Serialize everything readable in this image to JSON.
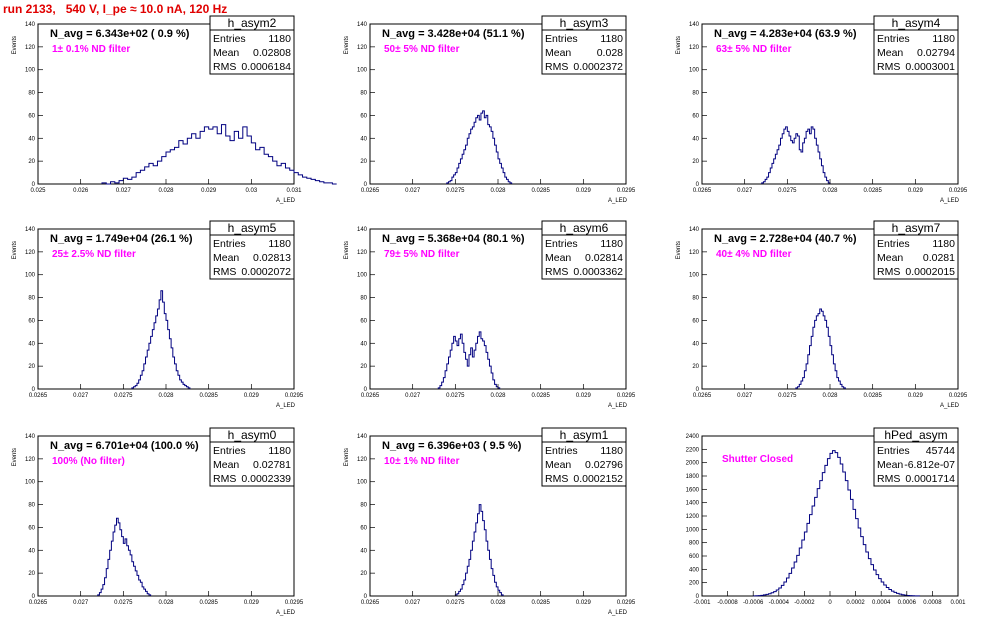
{
  "title": "run 2133,   540 V, I_pe ≈ 10.0 nA, 120 Hz",
  "chart_data": [
    {
      "type": "bar",
      "name": "h_asym2",
      "navg": "N_avg = 6.343e+02 ( 0.9 %)",
      "note": "1± 0.1% ND filter",
      "xlim": [
        0.025,
        0.031
      ],
      "ylim": [
        0,
        140
      ],
      "xticks": [
        "0.025",
        "0.026",
        "0.027",
        "0.028",
        "0.029",
        "0.03",
        "0.031"
      ],
      "xtick_values": [
        0.025,
        0.026,
        0.027,
        0.028,
        0.029,
        0.03,
        0.031
      ],
      "yticks": [
        "0",
        "20",
        "40",
        "60",
        "80",
        "100",
        "120",
        "140"
      ],
      "ytick_values": [
        0,
        20,
        40,
        60,
        80,
        100,
        120,
        140
      ],
      "xlabel": "A_LED",
      "ylabel": "Events",
      "stats": {
        "entries": "1180",
        "mean": "0.02808",
        "rms": "0.0006184"
      },
      "bins_x0": 0.0265,
      "bin_width": 0.0001,
      "values": [
        1,
        0,
        2,
        1,
        3,
        5,
        4,
        6,
        10,
        12,
        15,
        18,
        16,
        20,
        24,
        28,
        30,
        32,
        38,
        35,
        40,
        44,
        40,
        46,
        50,
        48,
        50,
        44,
        52,
        42,
        38,
        46,
        40,
        50,
        42,
        36,
        30,
        32,
        26,
        24,
        20,
        16,
        18,
        14,
        12,
        10,
        8,
        6,
        5,
        4,
        3,
        2,
        1,
        1,
        0
      ]
    },
    {
      "type": "bar",
      "name": "h_asym3",
      "navg": "N_avg = 3.428e+04 (51.1 %)",
      "note": "50± 5% ND filter",
      "xlim": [
        0.0265,
        0.0295
      ],
      "ylim": [
        0,
        140
      ],
      "xticks": [
        "0.0265",
        "0.027",
        "0.0275",
        "0.028",
        "0.0285",
        "0.029",
        "0.0295"
      ],
      "xtick_values": [
        0.0265,
        0.027,
        0.0275,
        0.028,
        0.0285,
        0.029,
        0.0295
      ],
      "yticks": [
        "0",
        "20",
        "40",
        "60",
        "80",
        "100",
        "120",
        "140"
      ],
      "ytick_values": [
        0,
        20,
        40,
        60,
        80,
        100,
        120,
        140
      ],
      "xlabel": "A_LED",
      "ylabel": "Events",
      "stats": {
        "entries": "1180",
        "mean": "0.028",
        "rms": "0.0002372"
      },
      "bins_x0": 0.0274,
      "bin_width": 2e-05,
      "values": [
        1,
        2,
        3,
        6,
        8,
        10,
        14,
        18,
        22,
        26,
        30,
        34,
        40,
        44,
        48,
        50,
        54,
        58,
        60,
        56,
        62,
        64,
        58,
        60,
        52,
        50,
        46,
        40,
        34,
        28,
        22,
        18,
        14,
        10,
        6,
        4,
        2,
        1
      ]
    },
    {
      "type": "bar",
      "name": "h_asym4",
      "navg": "N_avg = 4.283e+04 (63.9 %)",
      "note": "63± 5% ND filter",
      "xlim": [
        0.0265,
        0.0295
      ],
      "ylim": [
        0,
        140
      ],
      "xticks": [
        "0.0265",
        "0.027",
        "0.0275",
        "0.028",
        "0.0285",
        "0.029",
        "0.0295"
      ],
      "xtick_values": [
        0.0265,
        0.027,
        0.0275,
        0.028,
        0.0285,
        0.029,
        0.0295
      ],
      "yticks": [
        "0",
        "20",
        "40",
        "60",
        "80",
        "100",
        "120",
        "140"
      ],
      "ytick_values": [
        0,
        20,
        40,
        60,
        80,
        100,
        120,
        140
      ],
      "xlabel": "A_LED",
      "ylabel": "Events",
      "stats": {
        "entries": "1180",
        "mean": "0.02794",
        "rms": "0.0003001"
      },
      "bins_x0": 0.0272,
      "bin_width": 2e-05,
      "values": [
        1,
        2,
        4,
        6,
        10,
        14,
        18,
        22,
        26,
        30,
        34,
        40,
        44,
        48,
        50,
        46,
        42,
        38,
        36,
        40,
        44,
        42,
        30,
        28,
        36,
        40,
        46,
        48,
        44,
        50,
        48,
        40,
        34,
        28,
        22,
        16,
        10,
        6,
        3,
        1
      ]
    },
    {
      "type": "bar",
      "name": "h_asym5",
      "navg": "N_avg = 1.749e+04 (26.1 %)",
      "note": "25± 2.5% ND filter",
      "xlim": [
        0.0265,
        0.0295
      ],
      "ylim": [
        0,
        140
      ],
      "xticks": [
        "0.0265",
        "0.027",
        "0.0275",
        "0.028",
        "0.0285",
        "0.029",
        "0.0295"
      ],
      "xtick_values": [
        0.0265,
        0.027,
        0.0275,
        0.028,
        0.0285,
        0.029,
        0.0295
      ],
      "yticks": [
        "0",
        "20",
        "40",
        "60",
        "80",
        "100",
        "120",
        "140"
      ],
      "ytick_values": [
        0,
        20,
        40,
        60,
        80,
        100,
        120,
        140
      ],
      "xlabel": "A_LED",
      "ylabel": "Events",
      "stats": {
        "entries": "1180",
        "mean": "0.02813",
        "rms": "0.0002072"
      },
      "bins_x0": 0.0276,
      "bin_width": 2e-05,
      "values": [
        1,
        2,
        3,
        5,
        8,
        12,
        16,
        22,
        28,
        34,
        40,
        46,
        52,
        58,
        64,
        70,
        78,
        86,
        76,
        66,
        60,
        52,
        44,
        36,
        28,
        22,
        16,
        12,
        8,
        6,
        4,
        3,
        2,
        1
      ]
    },
    {
      "type": "bar",
      "name": "h_asym6",
      "navg": "N_avg = 5.368e+04 (80.1 %)",
      "note": "79± 5% ND filter",
      "xlim": [
        0.0265,
        0.0295
      ],
      "ylim": [
        0,
        140
      ],
      "xticks": [
        "0.0265",
        "0.027",
        "0.0275",
        "0.028",
        "0.0285",
        "0.029",
        "0.0295"
      ],
      "xtick_values": [
        0.0265,
        0.027,
        0.0275,
        0.028,
        0.0285,
        0.029,
        0.0295
      ],
      "yticks": [
        "0",
        "20",
        "40",
        "60",
        "80",
        "100",
        "120",
        "140"
      ],
      "ytick_values": [
        0,
        20,
        40,
        60,
        80,
        100,
        120,
        140
      ],
      "xlabel": "A_LED",
      "ylabel": "Events",
      "stats": {
        "entries": "1180",
        "mean": "0.02814",
        "rms": "0.0003362"
      },
      "bins_x0": 0.0273,
      "bin_width": 2e-05,
      "values": [
        1,
        3,
        6,
        10,
        16,
        22,
        28,
        34,
        40,
        46,
        42,
        38,
        44,
        48,
        40,
        32,
        26,
        20,
        30,
        36,
        28,
        34,
        40,
        46,
        50,
        44,
        42,
        38,
        32,
        26,
        20,
        14,
        8,
        4,
        2,
        1
      ]
    },
    {
      "type": "bar",
      "name": "h_asym7",
      "navg": "N_avg = 2.728e+04 (40.7 %)",
      "note": "40± 4% ND filter",
      "xlim": [
        0.0265,
        0.0295
      ],
      "ylim": [
        0,
        140
      ],
      "xticks": [
        "0.0265",
        "0.027",
        "0.0275",
        "0.028",
        "0.0285",
        "0.029",
        "0.0295"
      ],
      "xtick_values": [
        0.0265,
        0.027,
        0.0275,
        0.028,
        0.0285,
        0.029,
        0.0295
      ],
      "yticks": [
        "0",
        "20",
        "40",
        "60",
        "80",
        "100",
        "120",
        "140"
      ],
      "ytick_values": [
        0,
        20,
        40,
        60,
        80,
        100,
        120,
        140
      ],
      "xlabel": "A_LED",
      "ylabel": "Events",
      "stats": {
        "entries": "1180",
        "mean": "0.0281",
        "rms": "0.0002015"
      },
      "bins_x0": 0.0276,
      "bin_width": 2e-05,
      "values": [
        1,
        2,
        4,
        7,
        10,
        16,
        22,
        30,
        38,
        46,
        54,
        60,
        64,
        66,
        70,
        68,
        64,
        60,
        54,
        46,
        38,
        30,
        22,
        16,
        10,
        7,
        4,
        2,
        1
      ]
    },
    {
      "type": "bar",
      "name": "h_asym0",
      "navg": "N_avg = 6.701e+04 (100.0 %)",
      "note": "100% (No filter)",
      "xlim": [
        0.0265,
        0.0295
      ],
      "ylim": [
        0,
        140
      ],
      "xticks": [
        "0.0265",
        "0.027",
        "0.0275",
        "0.028",
        "0.0285",
        "0.029",
        "0.0295"
      ],
      "xtick_values": [
        0.0265,
        0.027,
        0.0275,
        0.028,
        0.0285,
        0.029,
        0.0295
      ],
      "yticks": [
        "0",
        "20",
        "40",
        "60",
        "80",
        "100",
        "120",
        "140"
      ],
      "ytick_values": [
        0,
        20,
        40,
        60,
        80,
        100,
        120,
        140
      ],
      "xlabel": "A_LED",
      "ylabel": "Events",
      "stats": {
        "entries": "1180",
        "mean": "0.02781",
        "rms": "0.0002339"
      },
      "bins_x0": 0.0272,
      "bin_width": 2e-05,
      "values": [
        1,
        3,
        6,
        10,
        16,
        24,
        32,
        40,
        48,
        56,
        62,
        68,
        64,
        58,
        52,
        46,
        50,
        44,
        40,
        36,
        30,
        26,
        22,
        18,
        14,
        12,
        8,
        6,
        4,
        2,
        1
      ]
    },
    {
      "type": "bar",
      "name": "h_asym1",
      "navg": "N_avg = 6.396e+03 ( 9.5 %)",
      "note": "10± 1% ND filter",
      "xlim": [
        0.0265,
        0.0295
      ],
      "ylim": [
        0,
        140
      ],
      "xticks": [
        "0.0265",
        "0.027",
        "0.0275",
        "0.028",
        "0.0285",
        "0.029",
        "0.0295"
      ],
      "xtick_values": [
        0.0265,
        0.027,
        0.0275,
        0.028,
        0.0285,
        0.029,
        0.0295
      ],
      "yticks": [
        "0",
        "20",
        "40",
        "60",
        "80",
        "100",
        "120",
        "140"
      ],
      "ytick_values": [
        0,
        20,
        40,
        60,
        80,
        100,
        120,
        140
      ],
      "xlabel": "A_LED",
      "ylabel": "Events",
      "stats": {
        "entries": "1180",
        "mean": "0.02796",
        "rms": "0.0002152"
      },
      "bins_x0": 0.0275,
      "bin_width": 2e-05,
      "values": [
        1,
        2,
        4,
        6,
        10,
        14,
        20,
        26,
        32,
        40,
        48,
        56,
        64,
        72,
        80,
        74,
        66,
        58,
        48,
        40,
        32,
        24,
        18,
        12,
        8,
        5,
        3,
        1
      ]
    },
    {
      "type": "bar",
      "name": "hPed_asym",
      "navg": "",
      "note": "Shutter Closed",
      "xlim": [
        -0.001,
        0.001
      ],
      "ylim": [
        0,
        2400
      ],
      "xticks": [
        "-0.001",
        "-0.0008",
        "-0.0006",
        "-0.0004",
        "-0.0002",
        "0",
        "0.0002",
        "0.0004",
        "0.0006",
        "0.0008",
        "0.001"
      ],
      "xtick_values": [
        -0.001,
        -0.0008,
        -0.0006,
        -0.0004,
        -0.0002,
        0,
        0.0002,
        0.0004,
        0.0006,
        0.0008,
        0.001
      ],
      "yticks": [
        "0",
        "200",
        "400",
        "600",
        "800",
        "1000",
        "1200",
        "1400",
        "1600",
        "1800",
        "2000",
        "2200",
        "2400"
      ],
      "ytick_values": [
        0,
        200,
        400,
        600,
        800,
        1000,
        1200,
        1400,
        1600,
        1800,
        2000,
        2200,
        2400
      ],
      "xlabel": "",
      "ylabel": "",
      "stats": {
        "entries": "45744",
        "mean": "-6.812e-07",
        "rms": "0.0001714"
      },
      "bins_x0": -0.0006,
      "bin_width": 2e-05,
      "values": [
        2,
        4,
        6,
        10,
        16,
        24,
        34,
        48,
        66,
        90,
        120,
        160,
        210,
        270,
        340,
        420,
        510,
        610,
        720,
        840,
        960,
        1090,
        1220,
        1350,
        1480,
        1610,
        1730,
        1850,
        1960,
        2060,
        2140,
        2180,
        2150,
        2080,
        1980,
        1860,
        1730,
        1590,
        1450,
        1300,
        1160,
        1020,
        890,
        770,
        660,
        560,
        470,
        390,
        320,
        260,
        210,
        165,
        128,
        98,
        74,
        55,
        40,
        28,
        19,
        13,
        8,
        5,
        3,
        2,
        1
      ]
    }
  ]
}
